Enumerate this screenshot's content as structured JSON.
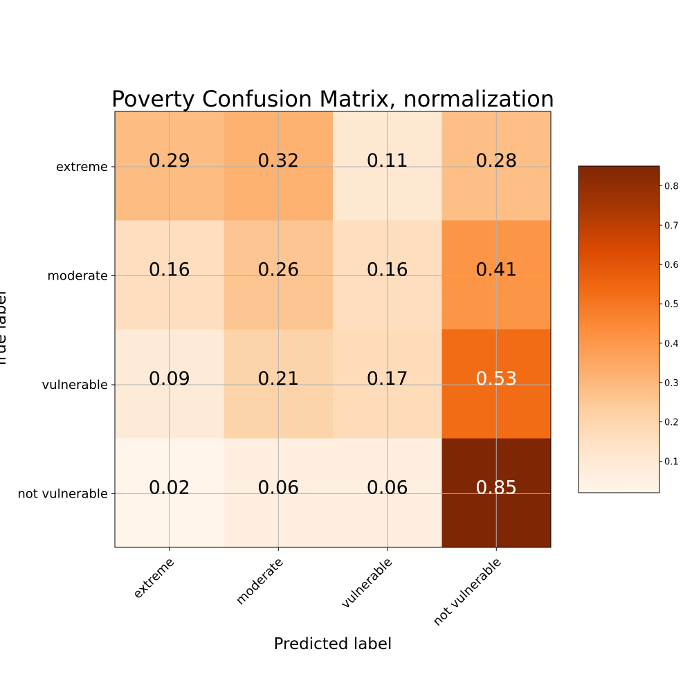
{
  "chart_data": {
    "type": "heatmap",
    "title": "Poverty Confusion Matrix, normalization",
    "xlabel": "Predicted label",
    "ylabel": "True label",
    "x_categories": [
      "extreme",
      "moderate",
      "vulnerable",
      "not vulnerable"
    ],
    "y_categories": [
      "extreme",
      "moderate",
      "vulnerable",
      "not vulnerable"
    ],
    "values": [
      [
        0.29,
        0.32,
        0.11,
        0.28
      ],
      [
        0.16,
        0.26,
        0.16,
        0.41
      ],
      [
        0.09,
        0.21,
        0.17,
        0.53
      ],
      [
        0.02,
        0.06,
        0.06,
        0.85
      ]
    ],
    "colormap": "Oranges",
    "colorbar": {
      "range": [
        0.02,
        0.85
      ],
      "ticks": [
        "0.1",
        "0.2",
        "0.3",
        "0.4",
        "0.5",
        "0.6",
        "0.7",
        "0.8"
      ]
    },
    "grid": true,
    "text_color_dark": "#000000",
    "text_color_light": "#ffffff"
  }
}
